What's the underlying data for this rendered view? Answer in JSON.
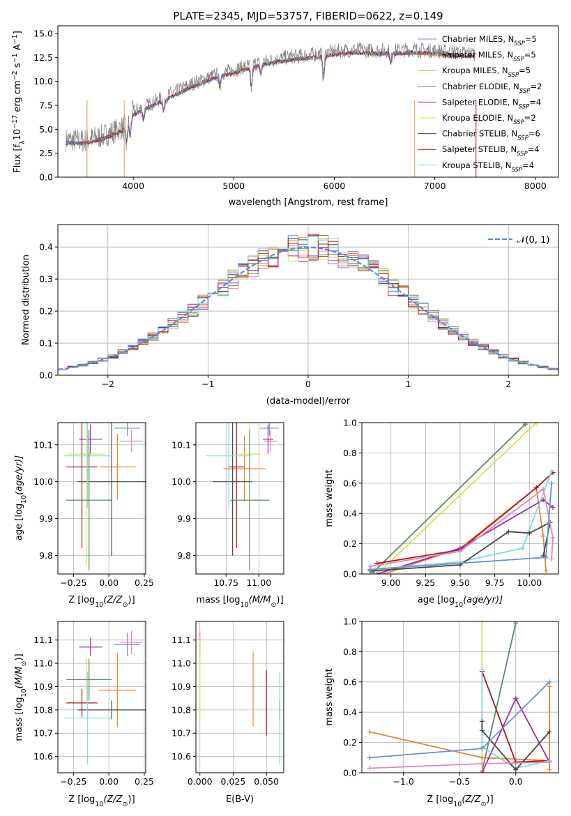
{
  "colors": {
    "Chabrier MILES": "#6d8fd8",
    "Salpeter MILES": "#e2873a",
    "Kroupa MILES": "#d4a23c",
    "Chabrier ELODIE": "#5a8a62",
    "Salpeter ELODIE": "#9a2ba8",
    "Kroupa ELODIE": "#d8e24a",
    "Chabrier STELIB": "#474747",
    "Salpeter STELIB": "#b0161c",
    "Kroupa STELIB": "#7fd8e0",
    "pink": "#e685b8",
    "spectrum": "#808080",
    "gaussian": "#5b8ad6"
  },
  "chart_data": [
    {
      "id": "spectrum",
      "type": "line",
      "title": "PLATE=2345, MJD=53757, FIBERID=0622, z=0.149",
      "xlabel": "wavelength [Angstrom, rest frame]",
      "ylabel_main": "Flux [f",
      "ylabel_sub": "λ",
      "ylabel_rest": "10",
      "ylabel_exp": "−17",
      "ylabel_tail": " erg cm",
      "ylabel_exp2": "−2",
      "ylabel_s": " s",
      "ylabel_exp3": "−1",
      "ylabel_A": " A",
      "ylabel_exp4": "−1",
      "ylabel_end": "]",
      "xlim": [
        3250,
        8230
      ],
      "ylim": [
        0,
        15.8
      ],
      "xticks": [
        "4000",
        "5000",
        "6000",
        "7000",
        "8000"
      ],
      "xtick_values": [
        4000,
        5000,
        6000,
        7000,
        8000
      ],
      "yticks": [
        "0.0",
        "2.5",
        "5.0",
        "7.5",
        "10.0",
        "12.5",
        "15.0"
      ],
      "ytick_values": [
        0,
        2.5,
        5,
        7.5,
        10,
        12.5,
        15
      ],
      "continuum": [
        [
          3300,
          3.9
        ],
        [
          3500,
          3.8
        ],
        [
          3700,
          4.3
        ],
        [
          3900,
          5.2
        ],
        [
          4000,
          6.8
        ],
        [
          4200,
          7.8
        ],
        [
          4400,
          8.8
        ],
        [
          4600,
          9.8
        ],
        [
          4800,
          10.6
        ],
        [
          5000,
          11.2
        ],
        [
          5200,
          11.8
        ],
        [
          5400,
          12.3
        ],
        [
          5600,
          12.6
        ],
        [
          5800,
          12.8
        ],
        [
          6000,
          13.1
        ],
        [
          6200,
          13.3
        ],
        [
          6400,
          13.2
        ],
        [
          6600,
          13.2
        ],
        [
          6800,
          13.3
        ],
        [
          7000,
          13.2
        ],
        [
          7200,
          13.0
        ],
        [
          7400,
          12.9
        ]
      ],
      "legend": [
        {
          "label": "Chabrier MILES, N",
          "sub": "SSP",
          "value": "=5"
        },
        {
          "label": "Salpeter MILES, N",
          "sub": "SSP",
          "value": "=5"
        },
        {
          "label": "Kroupa MILES, N",
          "sub": "SSP",
          "value": "=5"
        },
        {
          "label": "Chabrier ELODIE, N",
          "sub": "SSP",
          "value": "=2"
        },
        {
          "label": "Salpeter ELODIE, N",
          "sub": "SSP",
          "value": "=4"
        },
        {
          "label": "Kroupa ELODIE, N",
          "sub": "SSP",
          "value": "=2"
        },
        {
          "label": "Chabrier STELIB, N",
          "sub": "SSP",
          "value": "=6"
        },
        {
          "label": "Salpeter STELIB, N",
          "sub": "SSP",
          "value": "=4"
        },
        {
          "label": "Kroupa STELIB, N",
          "sub": "SSP",
          "value": "=4"
        }
      ]
    },
    {
      "id": "residuals",
      "type": "histogram",
      "xlabel": "(data-model)/error",
      "ylabel": "Normed distribution",
      "xlim": [
        -2.5,
        2.5
      ],
      "ylim": [
        0,
        0.47
      ],
      "xticks": [
        "−2",
        "−1",
        "0",
        "1",
        "2"
      ],
      "xtick_values": [
        -2,
        -1,
        0,
        1,
        2
      ],
      "yticks": [
        "0.0",
        "0.1",
        "0.2",
        "0.3",
        "0.4"
      ],
      "ytick_values": [
        0,
        0.1,
        0.2,
        0.3,
        0.4
      ],
      "legend_label": "𝒩(0, 1)",
      "bin_width": 0.1
    },
    {
      "id": "z-age",
      "type": "scatter",
      "xlabel": "Z [log",
      "xlabel_sub": "10",
      "xlabel_tail": "(Z/Z",
      "xlabel_sub2": "⊙",
      "xlabel_end": ")]",
      "ylabel": "age  [log",
      "ylabel_sub": "10",
      "ylabel_tail": "(age/yr)]",
      "xlim": [
        -0.36,
        0.26
      ],
      "ylim": [
        9.75,
        10.16
      ],
      "xticks": [
        "−0.25",
        "0.00",
        "0.25"
      ],
      "xtick_values": [
        -0.25,
        0,
        0.25
      ],
      "yticks": [
        "9.8",
        "9.9",
        "10.0",
        "10.1"
      ],
      "ytick_values": [
        9.8,
        9.9,
        10.0,
        10.1
      ],
      "points": [
        {
          "c": "Chabrier MILES",
          "x": 0.13,
          "y": 10.145,
          "xe": 0.09,
          "ye": 0.02
        },
        {
          "c": "Salpeter MILES",
          "x": 0.06,
          "y": 10.04,
          "xe": 0.13,
          "ye": 0.09
        },
        {
          "c": "pink",
          "x": 0.16,
          "y": 10.11,
          "xe": 0.08,
          "ye": 0.03
        },
        {
          "c": "Salpeter ELODIE",
          "x": -0.13,
          "y": 10.115,
          "xe": 0.08,
          "ye": 0.04
        },
        {
          "c": "Kroupa ELODIE",
          "x": -0.16,
          "y": 10.075,
          "xe": 0.13,
          "ye": 0.3
        },
        {
          "c": "Chabrier STELIB",
          "x": 0.02,
          "y": 10.0,
          "xe": 0.24,
          "ye": 0.2
        },
        {
          "c": "Salpeter STELIB",
          "x": -0.19,
          "y": 10.04,
          "xe": 0.11,
          "ye": 0.22
        },
        {
          "c": "Kroupa STELIB",
          "x": -0.15,
          "y": 10.07,
          "xe": 0.17,
          "ye": 0.14
        },
        {
          "c": "Chabrier ELODIE",
          "x": -0.14,
          "y": 9.95,
          "xe": 0.16,
          "ye": 0.19
        }
      ]
    },
    {
      "id": "mass-age",
      "type": "scatter",
      "xlabel": "mass [log",
      "xlabel_sub": "10",
      "xlabel_tail": "(M/M",
      "xlabel_sub2": "⊙",
      "xlabel_end": ")]",
      "xlim": [
        10.52,
        11.19
      ],
      "ylim": [
        9.75,
        10.16
      ],
      "xticks": [
        "10.75",
        "11.00"
      ],
      "xtick_values": [
        10.75,
        11.0
      ],
      "yticks": [
        "9.8",
        "9.9",
        "10.0",
        "10.1"
      ],
      "ytick_values": [
        9.8,
        9.9,
        10.0,
        10.1
      ],
      "points": [
        {
          "c": "Chabrier MILES",
          "x": 11.08,
          "y": 10.145,
          "xe": 0.07,
          "ye": 0.02
        },
        {
          "c": "Salpeter MILES",
          "x": 10.89,
          "y": 10.035,
          "xe": 0.16,
          "ye": 0.09
        },
        {
          "c": "pink",
          "x": 11.09,
          "y": 10.11,
          "xe": 0.05,
          "ye": 0.03
        },
        {
          "c": "Salpeter ELODIE",
          "x": 11.07,
          "y": 10.115,
          "xe": 0.04,
          "ye": 0.04
        },
        {
          "c": "Kroupa ELODIE",
          "x": 10.93,
          "y": 10.075,
          "xe": 0.08,
          "ye": 0.3
        },
        {
          "c": "Chabrier STELIB",
          "x": 10.8,
          "y": 10.0,
          "xe": 0.15,
          "ye": 0.2
        },
        {
          "c": "Salpeter STELIB",
          "x": 10.83,
          "y": 10.04,
          "xe": 0.06,
          "ye": 0.22
        },
        {
          "c": "Kroupa STELIB",
          "x": 10.77,
          "y": 10.07,
          "xe": 0.17,
          "ye": 0.14
        },
        {
          "c": "Chabrier ELODIE",
          "x": 10.93,
          "y": 9.95,
          "xe": 0.15,
          "ye": 0.19
        }
      ]
    },
    {
      "id": "age-weight",
      "type": "line",
      "xlabel": "age  [log",
      "xlabel_sub": "10",
      "xlabel_tail": "(age/yr)]",
      "ylabel": "mass weight",
      "xlim": [
        8.79,
        10.21
      ],
      "ylim": [
        0,
        1.0
      ],
      "xticks": [
        "9.00",
        "9.25",
        "9.50",
        "9.75",
        "10.00"
      ],
      "xtick_values": [
        9.0,
        9.25,
        9.5,
        9.75,
        10.0
      ],
      "yticks": [
        "0.0",
        "0.2",
        "0.4",
        "0.6",
        "0.8",
        "1.0"
      ],
      "ytick_values": [
        0,
        0.2,
        0.4,
        0.6,
        0.8,
        1.0
      ],
      "series": [
        {
          "c": "Chabrier ELODIE",
          "x": [
            8.87,
            9.97
          ],
          "y": [
            0.01,
            0.99
          ]
        },
        {
          "c": "Kroupa ELODIE",
          "x": [
            8.9,
            10.05
          ],
          "y": [
            0.0,
            1.0
          ]
        },
        {
          "c": "Salpeter MILES",
          "x": [
            8.95,
            9.5,
            10.05,
            10.1,
            10.12
          ],
          "y": [
            0.0,
            0.17,
            0.57,
            0.25,
            0.02
          ]
        },
        {
          "c": "Salpeter STELIB",
          "x": [
            8.9,
            9.5,
            10.05,
            10.17
          ],
          "y": [
            0.07,
            0.16,
            0.57,
            0.67
          ]
        },
        {
          "c": "Salpeter ELODIE",
          "x": [
            8.9,
            9.5,
            10.1,
            10.17
          ],
          "y": [
            0.0,
            0.17,
            0.49,
            0.44
          ]
        },
        {
          "c": "Kroupa STELIB",
          "x": [
            8.85,
            9.5,
            9.95,
            10.16
          ],
          "y": [
            0.03,
            0.08,
            0.17,
            0.68
          ]
        },
        {
          "c": "Chabrier STELIB",
          "x": [
            8.85,
            9.5,
            9.85,
            10.0,
            10.15,
            10.1
          ],
          "y": [
            0.02,
            0.06,
            0.28,
            0.27,
            0.34,
            0.12
          ]
        },
        {
          "c": "pink",
          "x": [
            8.85,
            9.5,
            10.1,
            10.17,
            10.16
          ],
          "y": [
            0.05,
            0.15,
            0.56,
            0.24,
            0.1
          ]
        },
        {
          "c": "Chabrier MILES",
          "x": [
            8.85,
            10.12,
            10.16
          ],
          "y": [
            0.03,
            0.11,
            0.6
          ]
        }
      ]
    },
    {
      "id": "z-mass",
      "type": "scatter",
      "xlabel": "Z [log",
      "xlabel_sub": "10",
      "xlabel_tail": "(Z/Z",
      "xlabel_sub2": "⊙",
      "xlabel_end": ")]",
      "ylabel": "mass [log",
      "ylabel_sub": "10",
      "ylabel_tail": "(M/M",
      "ylabel_sub2": "⊙",
      "ylabel_end": ")]",
      "xlim": [
        -0.36,
        0.26
      ],
      "ylim": [
        10.53,
        11.18
      ],
      "xticks": [
        "−0.25",
        "0.00",
        "0.25"
      ],
      "xtick_values": [
        -0.25,
        0,
        0.25
      ],
      "yticks": [
        "10.6",
        "10.7",
        "10.8",
        "10.9",
        "11.0",
        "11.1"
      ],
      "ytick_values": [
        10.6,
        10.7,
        10.8,
        10.9,
        11.0,
        11.1
      ],
      "points": [
        {
          "c": "Chabrier MILES",
          "x": 0.13,
          "y": 11.08,
          "xe": 0.09,
          "ye": 0.05
        },
        {
          "c": "Salpeter MILES",
          "x": 0.06,
          "y": 10.885,
          "xe": 0.13,
          "ye": 0.16
        },
        {
          "c": "pink",
          "x": 0.16,
          "y": 11.09,
          "xe": 0.08,
          "ye": 0.05
        },
        {
          "c": "Salpeter ELODIE",
          "x": -0.13,
          "y": 11.07,
          "xe": 0.08,
          "ye": 0.04
        },
        {
          "c": "Kroupa ELODIE",
          "x": -0.16,
          "y": 10.93,
          "xe": 0.13,
          "ye": 0.09
        },
        {
          "c": "Chabrier STELIB",
          "x": 0.02,
          "y": 10.8,
          "xe": 0.24,
          "ye": 0.04
        },
        {
          "c": "Salpeter STELIB",
          "x": -0.19,
          "y": 10.83,
          "xe": 0.11,
          "ye": 0.06
        },
        {
          "c": "Kroupa STELIB",
          "x": -0.15,
          "y": 10.765,
          "xe": 0.17,
          "ye": 0.2
        },
        {
          "c": "Chabrier ELODIE",
          "x": -0.14,
          "y": 10.93,
          "xe": 0.16,
          "ye": 0.09
        }
      ]
    },
    {
      "id": "ebv-mass",
      "type": "scatter",
      "xlabel": "E(B-V)",
      "xlim": [
        -0.003,
        0.063
      ],
      "ylim": [
        10.53,
        11.18
      ],
      "xticks": [
        "0.000",
        "0.025",
        "0.050"
      ],
      "xtick_values": [
        0,
        0.025,
        0.05
      ],
      "yticks": [
        "10.6",
        "10.7",
        "10.8",
        "10.9",
        "11.0",
        "11.1"
      ],
      "ytick_values": [
        10.6,
        10.7,
        10.8,
        10.9,
        11.0,
        11.1
      ],
      "points": [
        {
          "c": "Salpeter ELODIE",
          "x": 0.0,
          "y": 11.07,
          "xe": 0,
          "ye": 0.04
        },
        {
          "c": "pink",
          "x": 0.0,
          "y": 11.09,
          "xe": 0,
          "ye": 0.05
        },
        {
          "c": "Kroupa ELODIE",
          "x": 0.0,
          "y": 10.93,
          "xe": 0,
          "ye": 0.17
        },
        {
          "c": "Salpeter MILES",
          "x": 0.04,
          "y": 10.89,
          "xe": 0,
          "ye": 0.16
        },
        {
          "c": "Salpeter STELIB",
          "x": 0.05,
          "y": 10.83,
          "xe": 0,
          "ye": 0.14
        },
        {
          "c": "Chabrier STELIB",
          "x": 0.06,
          "y": 10.8,
          "xe": 0,
          "ye": 0.04
        },
        {
          "c": "Kroupa STELIB",
          "x": 0.06,
          "y": 10.765,
          "xe": 0,
          "ye": 0.2
        }
      ]
    },
    {
      "id": "z-weight",
      "type": "line",
      "xlabel": "Z [log",
      "xlabel_sub": "10",
      "xlabel_tail": "(Z/Z",
      "xlabel_sub2": "⊙",
      "xlabel_end": ")]",
      "ylabel": "mass weight",
      "xlim": [
        -1.37,
        0.38
      ],
      "ylim": [
        0,
        1.0
      ],
      "xticks": [
        "−1.0",
        "−0.5",
        "0.0"
      ],
      "xtick_values": [
        -1.0,
        -0.5,
        0.0
      ],
      "yticks": [
        "0.0",
        "0.2",
        "0.4",
        "0.6",
        "0.8",
        "1.0"
      ],
      "ytick_values": [
        0,
        0.2,
        0.4,
        0.6,
        0.8,
        1.0
      ],
      "series": [
        {
          "c": "Chabrier ELODIE",
          "x": [
            -0.3,
            0.0
          ],
          "y": [
            0.01,
            0.99
          ]
        },
        {
          "c": "Kroupa ELODIE",
          "x": [
            -0.3,
            -0.3
          ],
          "y": [
            0.0,
            1.0
          ]
        },
        {
          "c": "Salpeter MILES",
          "x": [
            -1.3,
            -0.3,
            0.3,
            0.3,
            0.3
          ],
          "y": [
            0.27,
            0.1,
            0.08,
            0.57,
            0.02
          ]
        },
        {
          "c": "Salpeter STELIB",
          "x": [
            -0.3,
            0.0,
            0.3
          ],
          "y": [
            0.67,
            0.07,
            0.08
          ]
        },
        {
          "c": "Salpeter ELODIE",
          "x": [
            -0.3,
            0.0,
            0.3
          ],
          "y": [
            0.0,
            0.49,
            0.07
          ]
        },
        {
          "c": "Kroupa STELIB",
          "x": [
            -0.3,
            -0.3,
            0.0,
            0.3
          ],
          "y": [
            0.68,
            0.17,
            0.03,
            0.08
          ]
        },
        {
          "c": "Chabrier STELIB",
          "x": [
            -0.3,
            -0.3,
            0.0,
            0.3
          ],
          "y": [
            0.34,
            0.28,
            0.02,
            0.27
          ]
        },
        {
          "c": "pink",
          "x": [
            -1.3,
            -0.3,
            0.3
          ],
          "y": [
            0.03,
            0.06,
            0.07
          ]
        },
        {
          "c": "Chabrier MILES",
          "x": [
            -1.3,
            -0.3,
            0.3
          ],
          "y": [
            0.1,
            0.16,
            0.6
          ]
        }
      ]
    }
  ]
}
